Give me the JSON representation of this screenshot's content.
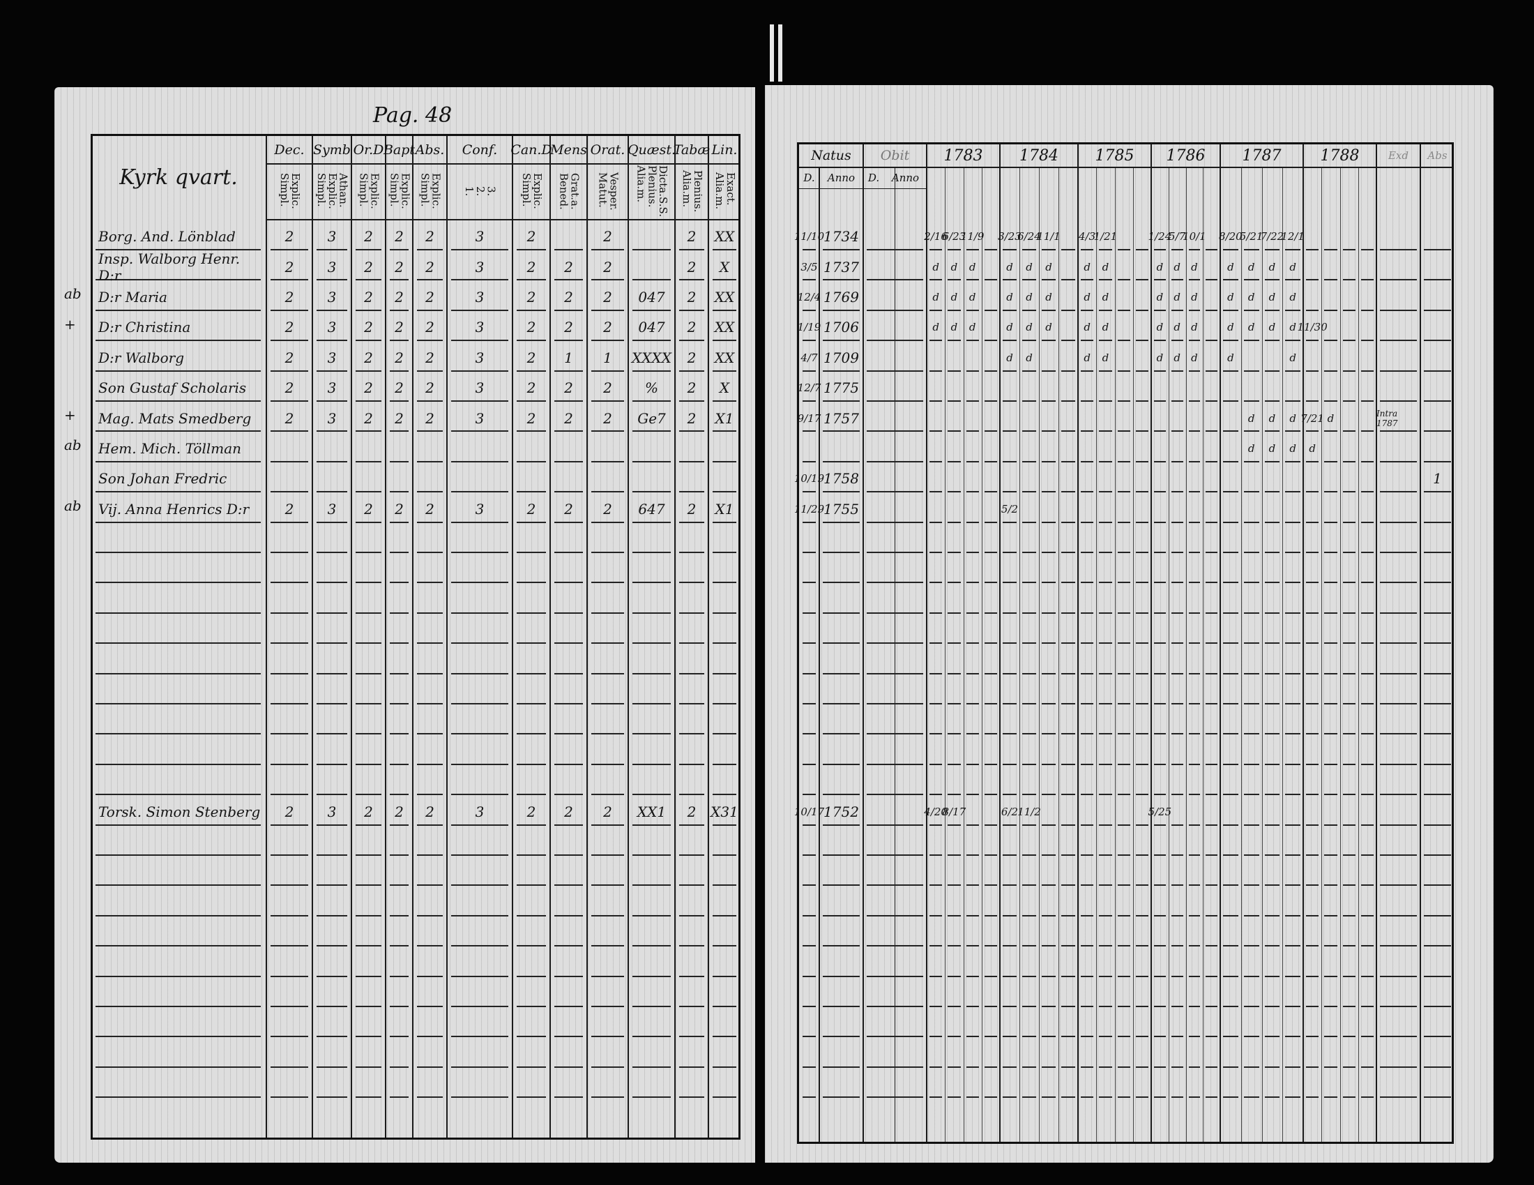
{
  "left_page": {
    "page_number": "Pag. 48",
    "title": "Kyrk qvart.",
    "headers": [
      {
        "label": "Dec.",
        "sub": "Explic.\nSimpl."
      },
      {
        "label": "Symb",
        "sub": "Athan.\nExplic.\nSimpl."
      },
      {
        "label": "Or.D",
        "sub": "Explic.\nSimpl."
      },
      {
        "label": "Bapt",
        "sub": "Explic.\nSimpl."
      },
      {
        "label": "Abs.",
        "sub": "Explic.\nSimpl."
      },
      {
        "label": "Conf.",
        "sub": "3.\n2.\n1."
      },
      {
        "label": "Can.D",
        "sub": "Explic.\nSimpl."
      },
      {
        "label": "Mens",
        "sub": "Grat.a.\nBened."
      },
      {
        "label": "Orat.",
        "sub": "Vesper.\nMatut."
      },
      {
        "label": "Quæst.",
        "sub": "Dicta.S.S.\nPlenius.\nAlia.m."
      },
      {
        "label": "Tabæ",
        "sub": "Plenius.\nAlia.m."
      },
      {
        "label": "Lin.",
        "sub": "Exact.\nAlia.m."
      }
    ],
    "rows": [
      {
        "margin": "",
        "name": "Borg. And. Lönblad",
        "values": [
          "2",
          "3",
          "2",
          "2",
          "2",
          "3",
          "2",
          "",
          "2",
          "",
          "2",
          "XX"
        ]
      },
      {
        "margin": "",
        "name": "Insp. Walborg Henr. D:r",
        "values": [
          "2",
          "3",
          "2",
          "2",
          "2",
          "3",
          "2",
          "2",
          "2",
          "",
          "2",
          "X"
        ]
      },
      {
        "margin": "ab",
        "name": "D:r Maria",
        "values": [
          "2",
          "3",
          "2",
          "2",
          "2",
          "3",
          "2",
          "2",
          "2",
          "047",
          "2",
          "XX"
        ]
      },
      {
        "margin": "+",
        "name": "D:r Christina",
        "values": [
          "2",
          "3",
          "2",
          "2",
          "2",
          "3",
          "2",
          "2",
          "2",
          "047",
          "2",
          "XX"
        ]
      },
      {
        "margin": "",
        "name": "D:r Walborg",
        "values": [
          "2",
          "3",
          "2",
          "2",
          "2",
          "3",
          "2",
          "1",
          "1",
          "XXXX",
          "2",
          "XX"
        ]
      },
      {
        "margin": "",
        "name": "Son Gustaf Scholaris",
        "values": [
          "2",
          "3",
          "2",
          "2",
          "2",
          "3",
          "2",
          "2",
          "2",
          "%",
          "2",
          "X"
        ]
      },
      {
        "margin": "+",
        "name": "Mag. Mats Smedberg",
        "values": [
          "2",
          "3",
          "2",
          "2",
          "2",
          "3",
          "2",
          "2",
          "2",
          "Ge7",
          "2",
          "X1"
        ]
      },
      {
        "margin": "ab",
        "name": "Hem. Mich. Töllman",
        "values": []
      },
      {
        "margin": "",
        "name": "Son Johan Fredric",
        "values": []
      },
      {
        "margin": "ab",
        "name": "Vij. Anna Henrics D:r",
        "values": [
          "2",
          "3",
          "2",
          "2",
          "2",
          "3",
          "2",
          "2",
          "2",
          "647",
          "2",
          "X1"
        ]
      },
      null,
      null,
      null,
      null,
      null,
      null,
      null,
      null,
      null,
      {
        "margin": "",
        "name": "Torsk. Simon Stenberg",
        "values": [
          "2",
          "3",
          "2",
          "2",
          "2",
          "3",
          "2",
          "2",
          "2",
          "XX1",
          "2",
          "X31"
        ]
      }
    ]
  },
  "right_page": {
    "headers": {
      "natus": "Natus",
      "obit": "Obit",
      "years": [
        "1783",
        "1784",
        "1785",
        "1786",
        "1787",
        "1788"
      ],
      "exd": "Exd",
      "abs": "Abs",
      "natus_sub": [
        "D.",
        "Anno"
      ],
      "obit_sub": [
        "D.",
        "Anno"
      ]
    },
    "rows": [
      {
        "d": "11/10",
        "anno": "1734",
        "marks": [
          [
            "2/16",
            "6/23",
            "11/9"
          ],
          [
            "3/23",
            "6/24",
            "11/1"
          ],
          [
            "4/3",
            "1/21"
          ],
          [
            "1/24",
            "5/7",
            "10/1"
          ],
          [
            "8/20",
            "5/21",
            "7/22",
            "12/1"
          ],
          []
        ]
      },
      {
        "d": "3/5",
        "anno": "1737",
        "marks": [
          [
            "d",
            "d",
            "d"
          ],
          [
            "d",
            "d",
            "d"
          ],
          [
            "d",
            "d"
          ],
          [
            "d",
            "d",
            "d"
          ],
          [
            "d",
            "d",
            "d",
            "d"
          ],
          []
        ]
      },
      {
        "d": "12/4",
        "anno": "1769",
        "marks": [
          [
            "d",
            "d",
            "d"
          ],
          [
            "d",
            "d",
            "d"
          ],
          [
            "d",
            "d"
          ],
          [
            "d",
            "d",
            "d"
          ],
          [
            "d",
            "d",
            "d",
            "d"
          ],
          []
        ]
      },
      {
        "d": "1/19",
        "anno": "1706",
        "marks": [
          [
            "d",
            "d",
            "d"
          ],
          [
            "d",
            "d",
            "d"
          ],
          [
            "d",
            "d"
          ],
          [
            "d",
            "d",
            "d"
          ],
          [
            "d",
            "d",
            "d",
            "d"
          ],
          [
            "11/30"
          ]
        ]
      },
      {
        "d": "4/7",
        "anno": "1709",
        "marks": [
          [],
          [
            "d",
            "d"
          ],
          [
            "d",
            "d"
          ],
          [
            "d",
            "d",
            "d"
          ],
          [
            "d",
            "",
            "",
            "d"
          ],
          []
        ]
      },
      {
        "d": "12/7",
        "anno": "1775",
        "marks": [
          [],
          [],
          [],
          [],
          [],
          []
        ]
      },
      {
        "d": "9/17",
        "anno": "1757",
        "marks": [
          [],
          [],
          [],
          [],
          [
            "",
            "d",
            "d",
            "d"
          ],
          [
            "7/21",
            "d"
          ]
        ],
        "exd": "Intra 1787"
      },
      {
        "d": "",
        "anno": "",
        "marks": [
          [],
          [],
          [],
          [],
          [
            "",
            "d",
            "d",
            "d"
          ],
          [
            "d"
          ]
        ]
      },
      {
        "d": "10/19",
        "anno": "1758",
        "marks": [
          [],
          [],
          [],
          [],
          [],
          []
        ],
        "abs": "1"
      },
      {
        "d": "11/29",
        "anno": "1755",
        "marks": [
          [],
          [
            "5/2"
          ],
          [],
          [],
          [],
          []
        ]
      },
      null,
      null,
      null,
      null,
      null,
      null,
      null,
      null,
      null,
      {
        "d": "10/17",
        "anno": "1752",
        "marks": [
          [
            "4/20",
            "8/17"
          ],
          [
            "6/2",
            "11/2"
          ],
          [],
          [
            "5/25"
          ],
          [],
          []
        ]
      }
    ]
  }
}
